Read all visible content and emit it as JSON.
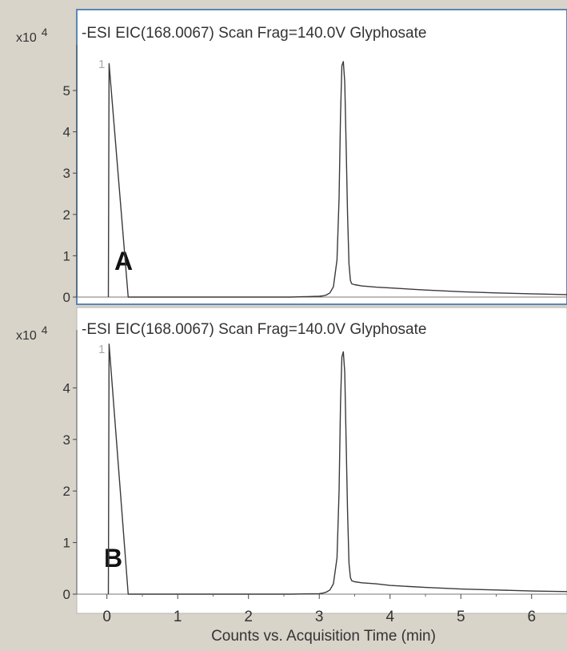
{
  "figure": {
    "xlabel": "Counts vs. Acquisition Time (min)"
  },
  "chart_data": [
    {
      "type": "line",
      "panel_label": "A",
      "title": "-ESI  EIC(168.0067)  Scan  Frag=140.0V  Glyphosate",
      "trace_index": "1",
      "y_multiplier": "x10 4",
      "y_multiplier_base": "x10",
      "y_multiplier_exp": "4",
      "xlim": [
        -0.2,
        6.5
      ],
      "ylim": [
        0,
        5.95
      ],
      "x_ticks": [
        0,
        1,
        2,
        3,
        4,
        5,
        6
      ],
      "y_ticks": [
        0,
        1,
        2,
        3,
        4,
        5
      ],
      "selected": true,
      "series": [
        {
          "x": [
            0.02,
            0.03,
            0.3,
            1.0,
            2.0,
            2.6,
            3.0,
            3.05,
            3.1,
            3.15,
            3.2,
            3.25,
            3.28,
            3.3,
            3.32,
            3.34,
            3.36,
            3.38,
            3.4,
            3.42,
            3.44,
            3.46,
            3.5,
            3.6,
            3.8,
            4.0,
            4.5,
            5.0,
            5.5,
            6.0,
            6.5
          ],
          "y": [
            0,
            5.65,
            0,
            0,
            0,
            0,
            0.02,
            0.03,
            0.05,
            0.1,
            0.25,
            0.9,
            2.4,
            4.4,
            5.6,
            5.7,
            5.2,
            3.6,
            2.0,
            0.8,
            0.4,
            0.32,
            0.3,
            0.27,
            0.24,
            0.22,
            0.17,
            0.13,
            0.1,
            0.08,
            0.06
          ]
        }
      ]
    },
    {
      "type": "line",
      "panel_label": "B",
      "title": "-ESI  EIC(168.0067)  Scan  Frag=140.0V  Glyphosate",
      "trace_index": "1",
      "y_multiplier": "x10 4",
      "y_multiplier_base": "x10",
      "y_multiplier_exp": "4",
      "xlim": [
        -0.2,
        6.5
      ],
      "ylim": [
        0,
        5.0
      ],
      "x_ticks": [
        0,
        1,
        2,
        3,
        4,
        5,
        6
      ],
      "y_ticks": [
        0,
        1,
        2,
        3,
        4
      ],
      "selected": false,
      "series": [
        {
          "x": [
            0.02,
            0.03,
            0.3,
            1.0,
            2.0,
            2.6,
            3.0,
            3.05,
            3.1,
            3.15,
            3.2,
            3.25,
            3.28,
            3.3,
            3.32,
            3.34,
            3.36,
            3.38,
            3.4,
            3.42,
            3.44,
            3.46,
            3.5,
            3.6,
            3.8,
            4.0,
            4.5,
            5.0,
            5.5,
            6.0,
            6.5
          ],
          "y": [
            0,
            4.85,
            0,
            0,
            0,
            0,
            0.01,
            0.02,
            0.04,
            0.08,
            0.2,
            0.7,
            2.0,
            3.7,
            4.6,
            4.7,
            4.3,
            2.9,
            1.6,
            0.6,
            0.32,
            0.26,
            0.24,
            0.22,
            0.2,
            0.17,
            0.13,
            0.1,
            0.08,
            0.06,
            0.05
          ]
        }
      ]
    }
  ]
}
